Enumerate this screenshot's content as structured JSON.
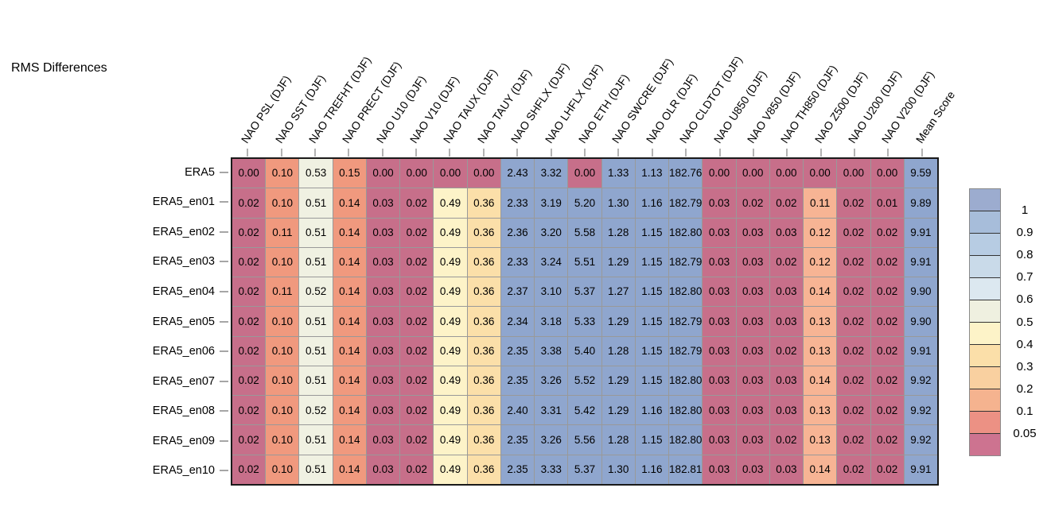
{
  "title": "RMS Differences",
  "chart_data": {
    "type": "heatmap",
    "title": "RMS Differences",
    "columns": [
      "NAO PSL (DJF)",
      "NAO SST (DJF)",
      "NAO TREFHT (DJF)",
      "NAO PRECT (DJF)",
      "NAO U10 (DJF)",
      "NAO V10 (DJF)",
      "NAO TAUX (DJF)",
      "NAO TAUY (DJF)",
      "NAO SHFLX (DJF)",
      "NAO LHFLX (DJF)",
      "NAO ETH (DJF)",
      "NAO SWCRE (DJF)",
      "NAO OLR (DJF)",
      "NAO CLDTOT (DJF)",
      "NAO U850 (DJF)",
      "NAO V850 (DJF)",
      "NAO TH850 (DJF)",
      "NAO Z500 (DJF)",
      "NAO U200 (DJF)",
      "NAO V200 (DJF)",
      "Mean Score"
    ],
    "rows": [
      "ERA5",
      "ERA5_en01",
      "ERA5_en02",
      "ERA5_en03",
      "ERA5_en04",
      "ERA5_en05",
      "ERA5_en06",
      "ERA5_en07",
      "ERA5_en08",
      "ERA5_en09",
      "ERA5_en10"
    ],
    "values": [
      [
        "0.00",
        "0.10",
        "0.53",
        "0.15",
        "0.00",
        "0.00",
        "0.00",
        "0.00",
        "2.43",
        "3.32",
        "0.00",
        "1.33",
        "1.13",
        "182.76",
        "0.00",
        "0.00",
        "0.00",
        "0.00",
        "0.00",
        "0.00",
        "9.59"
      ],
      [
        "0.02",
        "0.10",
        "0.51",
        "0.14",
        "0.03",
        "0.02",
        "0.49",
        "0.36",
        "2.33",
        "3.19",
        "5.20",
        "1.30",
        "1.16",
        "182.79",
        "0.03",
        "0.02",
        "0.02",
        "0.11",
        "0.02",
        "0.01",
        "9.89"
      ],
      [
        "0.02",
        "0.11",
        "0.51",
        "0.14",
        "0.03",
        "0.02",
        "0.49",
        "0.36",
        "2.36",
        "3.20",
        "5.58",
        "1.28",
        "1.15",
        "182.80",
        "0.03",
        "0.03",
        "0.03",
        "0.12",
        "0.02",
        "0.02",
        "9.91"
      ],
      [
        "0.02",
        "0.10",
        "0.51",
        "0.14",
        "0.03",
        "0.02",
        "0.49",
        "0.36",
        "2.33",
        "3.24",
        "5.51",
        "1.29",
        "1.15",
        "182.79",
        "0.03",
        "0.03",
        "0.02",
        "0.12",
        "0.02",
        "0.02",
        "9.91"
      ],
      [
        "0.02",
        "0.11",
        "0.52",
        "0.14",
        "0.03",
        "0.02",
        "0.49",
        "0.36",
        "2.37",
        "3.10",
        "5.37",
        "1.27",
        "1.15",
        "182.80",
        "0.03",
        "0.03",
        "0.03",
        "0.14",
        "0.02",
        "0.02",
        "9.90"
      ],
      [
        "0.02",
        "0.10",
        "0.51",
        "0.14",
        "0.03",
        "0.02",
        "0.49",
        "0.36",
        "2.34",
        "3.18",
        "5.33",
        "1.29",
        "1.15",
        "182.79",
        "0.03",
        "0.03",
        "0.03",
        "0.13",
        "0.02",
        "0.02",
        "9.90"
      ],
      [
        "0.02",
        "0.10",
        "0.51",
        "0.14",
        "0.03",
        "0.02",
        "0.49",
        "0.36",
        "2.35",
        "3.38",
        "5.40",
        "1.28",
        "1.15",
        "182.79",
        "0.03",
        "0.03",
        "0.02",
        "0.13",
        "0.02",
        "0.02",
        "9.91"
      ],
      [
        "0.02",
        "0.10",
        "0.51",
        "0.14",
        "0.03",
        "0.02",
        "0.49",
        "0.36",
        "2.35",
        "3.26",
        "5.52",
        "1.29",
        "1.15",
        "182.80",
        "0.03",
        "0.03",
        "0.03",
        "0.14",
        "0.02",
        "0.02",
        "9.92"
      ],
      [
        "0.02",
        "0.10",
        "0.52",
        "0.14",
        "0.03",
        "0.02",
        "0.49",
        "0.36",
        "2.40",
        "3.31",
        "5.42",
        "1.29",
        "1.16",
        "182.80",
        "0.03",
        "0.03",
        "0.03",
        "0.13",
        "0.02",
        "0.02",
        "9.92"
      ],
      [
        "0.02",
        "0.10",
        "0.51",
        "0.14",
        "0.03",
        "0.02",
        "0.49",
        "0.36",
        "2.35",
        "3.26",
        "5.56",
        "1.28",
        "1.15",
        "182.80",
        "0.03",
        "0.03",
        "0.02",
        "0.13",
        "0.02",
        "0.02",
        "9.92"
      ],
      [
        "0.02",
        "0.10",
        "0.51",
        "0.14",
        "0.03",
        "0.02",
        "0.49",
        "0.36",
        "2.35",
        "3.33",
        "5.37",
        "1.30",
        "1.16",
        "182.81",
        "0.03",
        "0.03",
        "0.03",
        "0.14",
        "0.02",
        "0.02",
        "9.91"
      ]
    ],
    "legend_ticks": [
      "1",
      "0.9",
      "0.8",
      "0.7",
      "0.6",
      "0.5",
      "0.4",
      "0.3",
      "0.2",
      "0.1",
      "0.05"
    ],
    "legend_position": "right"
  },
  "palette": {
    "rose": "#c76f8a",
    "salmon": "#f0997e",
    "cream": "#f0f1e2",
    "pale_yellow": "#fdf3c8",
    "light_orange": "#fbdfa9",
    "peach": "#f7b494",
    "blue": "#8fa6ce"
  },
  "column_color_keys": [
    "rose",
    "salmon",
    "cream",
    "salmon",
    "rose",
    "rose",
    "pale_yellow",
    "light_orange",
    "blue",
    "blue",
    "blue",
    "blue",
    "blue",
    "blue",
    "rose",
    "rose",
    "rose",
    "peach",
    "rose",
    "rose",
    "blue"
  ],
  "row0_color_overrides": {
    "6": "rose",
    "7": "rose",
    "10": "rose",
    "17": "rose"
  },
  "legend_block_colors": [
    "#9caccf",
    "#a7bdda",
    "#b7cce3",
    "#c9dae9",
    "#dce8f0",
    "#eff0e0",
    "#fdf3c8",
    "#fbdfa9",
    "#f9d0a0",
    "#f5b38f",
    "#ec9184",
    "#cd7390"
  ]
}
